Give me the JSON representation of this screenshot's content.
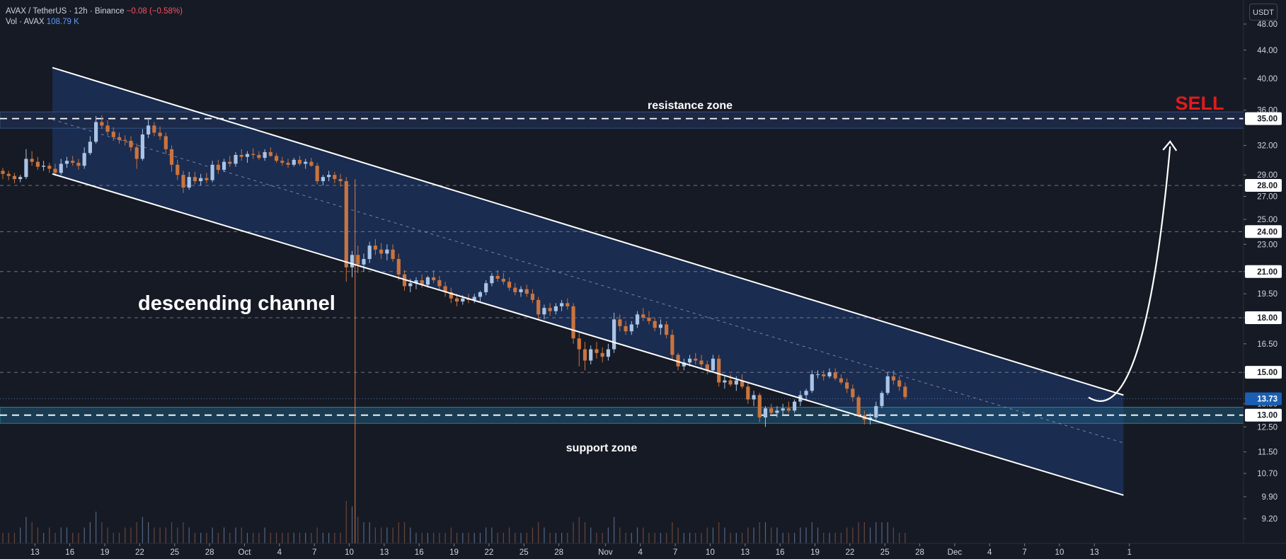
{
  "header": {
    "symbol": "AVAX / TetherUS · 12h · Binance",
    "change": "−0.08 (−0.58%)",
    "volume_label": "Vol · AVAX",
    "volume_value": "108.79 K"
  },
  "toolbar": {
    "unit_label": "USDT"
  },
  "colors": {
    "background": "#161a25",
    "up": "#a9c4e6",
    "down": "#c9743f",
    "channel_fill": "#1c3360",
    "support_fill": "#1f5a7a",
    "sell": "#e01b1b",
    "current_price_tag": "#1a5fb4"
  },
  "annotations": {
    "resistance_label": "resistance zone",
    "support_label": "support zone",
    "channel_label": "descending channel",
    "sell_label": "SELL"
  },
  "chart_data": {
    "type": "candlestick",
    "series_name": "AVAX / TetherUS",
    "timeframe": "12h",
    "y_axis": {
      "scale": "log",
      "ylim": [
        9.0,
        51.5
      ],
      "ticks": [
        48.0,
        44.0,
        40.0,
        36.0,
        32.0,
        29.0,
        27.0,
        25.0,
        23.0,
        21.0,
        19.5,
        18.0,
        16.5,
        15.0,
        13.5,
        12.5,
        11.5,
        10.7,
        9.9,
        9.2
      ]
    },
    "y_tick_labels": [
      "48.00",
      "44.00",
      "40.00",
      "36.00",
      "32.00",
      "29.00",
      "27.00",
      "25.00",
      "23.00",
      "21.00",
      "19.50",
      "18.00",
      "16.50",
      "15.00",
      "13.50",
      "12.50",
      "11.50",
      "10.70",
      "9.90",
      "9.20"
    ],
    "x_ticks": [
      {
        "label": "13",
        "day": 13
      },
      {
        "label": "16",
        "day": 16
      },
      {
        "label": "19",
        "day": 19
      },
      {
        "label": "22",
        "day": 22
      },
      {
        "label": "25",
        "day": 25
      },
      {
        "label": "28",
        "day": 28
      },
      {
        "label": "Oct",
        "day": 31
      },
      {
        "label": "4",
        "day": 34
      },
      {
        "label": "7",
        "day": 37
      },
      {
        "label": "10",
        "day": 40
      },
      {
        "label": "13",
        "day": 43
      },
      {
        "label": "16",
        "day": 46
      },
      {
        "label": "19",
        "day": 49
      },
      {
        "label": "22",
        "day": 52
      },
      {
        "label": "25",
        "day": 55
      },
      {
        "label": "28",
        "day": 58
      },
      {
        "label": "Nov",
        "day": 62
      },
      {
        "label": "4",
        "day": 65
      },
      {
        "label": "7",
        "day": 68
      },
      {
        "label": "10",
        "day": 71
      },
      {
        "label": "13",
        "day": 74
      },
      {
        "label": "16",
        "day": 77
      },
      {
        "label": "19",
        "day": 80
      },
      {
        "label": "22",
        "day": 83
      },
      {
        "label": "25",
        "day": 86
      },
      {
        "label": "28",
        "day": 89
      },
      {
        "label": "Dec",
        "day": 92
      },
      {
        "label": "4",
        "day": 95
      },
      {
        "label": "7",
        "day": 98
      },
      {
        "label": "10",
        "day": 101
      },
      {
        "label": "13",
        "day": 104
      },
      {
        "label": "1",
        "day": 107
      }
    ],
    "first_candle_date": "Sep 10",
    "candles_per_day": 2,
    "candles": [
      [
        29.4,
        29.7,
        28.6,
        29.1
      ],
      [
        29.1,
        29.4,
        28.5,
        28.9
      ],
      [
        28.9,
        29.2,
        28.2,
        28.6
      ],
      [
        28.6,
        29.0,
        28.3,
        28.8
      ],
      [
        28.8,
        31.6,
        28.6,
        30.6
      ],
      [
        30.6,
        31.4,
        29.9,
        30.3
      ],
      [
        30.3,
        30.8,
        29.5,
        29.8
      ],
      [
        29.8,
        30.4,
        29.4,
        29.9
      ],
      [
        29.9,
        30.2,
        29.2,
        29.6
      ],
      [
        29.6,
        30.1,
        28.9,
        29.2
      ],
      [
        29.2,
        30.6,
        29.0,
        30.1
      ],
      [
        30.1,
        30.8,
        29.7,
        30.4
      ],
      [
        30.4,
        30.9,
        29.9,
        30.2
      ],
      [
        30.2,
        30.6,
        29.5,
        29.9
      ],
      [
        29.9,
        31.8,
        29.6,
        31.2
      ],
      [
        31.2,
        33.0,
        31.0,
        32.4
      ],
      [
        32.4,
        35.3,
        32.2,
        34.6
      ],
      [
        34.6,
        35.4,
        33.8,
        34.2
      ],
      [
        34.2,
        34.8,
        33.1,
        33.5
      ],
      [
        33.5,
        34.0,
        32.5,
        32.9
      ],
      [
        32.9,
        33.4,
        32.2,
        32.6
      ],
      [
        32.6,
        33.1,
        32.0,
        32.5
      ],
      [
        32.5,
        33.0,
        31.4,
        31.8
      ],
      [
        31.8,
        32.2,
        29.6,
        30.6
      ],
      [
        30.6,
        33.8,
        30.4,
        33.2
      ],
      [
        33.2,
        35.1,
        32.8,
        34.2
      ],
      [
        34.2,
        34.6,
        33.0,
        33.4
      ],
      [
        33.4,
        34.1,
        32.6,
        33.0
      ],
      [
        33.0,
        33.4,
        31.1,
        31.6
      ],
      [
        31.6,
        32.0,
        29.3,
        30.0
      ],
      [
        30.0,
        30.5,
        28.5,
        29.0
      ],
      [
        29.0,
        29.4,
        27.3,
        27.8
      ],
      [
        27.8,
        29.3,
        27.6,
        28.8
      ],
      [
        28.8,
        29.3,
        28.1,
        28.4
      ],
      [
        28.4,
        29.1,
        28.0,
        28.7
      ],
      [
        28.7,
        29.2,
        28.2,
        28.5
      ],
      [
        28.5,
        30.4,
        28.3,
        30.0
      ],
      [
        30.0,
        30.5,
        29.1,
        29.5
      ],
      [
        29.5,
        30.6,
        29.3,
        30.3
      ],
      [
        30.3,
        30.9,
        29.8,
        30.1
      ],
      [
        30.1,
        31.3,
        29.8,
        31.0
      ],
      [
        31.0,
        31.6,
        30.4,
        30.8
      ],
      [
        30.8,
        31.4,
        30.2,
        31.1
      ],
      [
        31.1,
        31.7,
        30.6,
        31.0
      ],
      [
        31.0,
        31.4,
        30.5,
        30.7
      ],
      [
        30.7,
        31.6,
        30.4,
        31.3
      ],
      [
        31.3,
        31.8,
        30.8,
        30.9
      ],
      [
        30.9,
        31.2,
        30.2,
        30.4
      ],
      [
        30.4,
        30.8,
        29.9,
        30.2
      ],
      [
        30.2,
        30.6,
        29.7,
        30.0
      ],
      [
        30.0,
        30.7,
        29.8,
        30.5
      ],
      [
        30.5,
        30.9,
        29.9,
        30.1
      ],
      [
        30.1,
        30.6,
        29.6,
        30.3
      ],
      [
        30.3,
        30.7,
        29.8,
        29.9
      ],
      [
        29.9,
        30.2,
        28.1,
        28.4
      ],
      [
        28.4,
        29.0,
        28.0,
        28.8
      ],
      [
        28.8,
        29.4,
        28.4,
        29.0
      ],
      [
        29.0,
        29.3,
        28.2,
        28.6
      ],
      [
        28.6,
        29.1,
        27.9,
        28.4
      ],
      [
        28.4,
        28.8,
        20.3,
        21.3
      ],
      [
        21.3,
        22.5,
        20.6,
        22.2
      ],
      [
        22.2,
        22.9,
        20.9,
        21.5
      ],
      [
        21.5,
        22.3,
        21.0,
        21.9
      ],
      [
        21.9,
        23.2,
        21.6,
        22.9
      ],
      [
        22.9,
        23.4,
        22.2,
        22.6
      ],
      [
        22.6,
        23.1,
        21.9,
        22.3
      ],
      [
        22.3,
        23.0,
        21.8,
        22.6
      ],
      [
        22.6,
        23.0,
        21.7,
        21.9
      ],
      [
        21.9,
        22.3,
        20.4,
        20.8
      ],
      [
        20.8,
        21.1,
        19.7,
        20.0
      ],
      [
        20.0,
        20.5,
        19.6,
        20.2
      ],
      [
        20.2,
        20.6,
        19.8,
        20.4
      ],
      [
        20.4,
        20.8,
        19.9,
        20.1
      ],
      [
        20.1,
        20.7,
        19.9,
        20.6
      ],
      [
        20.6,
        21.1,
        20.2,
        20.4
      ],
      [
        20.4,
        20.7,
        19.8,
        20.0
      ],
      [
        20.0,
        20.3,
        19.3,
        19.6
      ],
      [
        19.6,
        19.9,
        18.9,
        19.2
      ],
      [
        19.2,
        19.5,
        18.7,
        19.0
      ],
      [
        19.0,
        19.4,
        18.8,
        19.2
      ],
      [
        19.2,
        19.5,
        18.9,
        19.1
      ],
      [
        19.1,
        19.5,
        18.9,
        19.3
      ],
      [
        19.3,
        19.7,
        19.0,
        19.6
      ],
      [
        19.6,
        20.4,
        19.4,
        20.2
      ],
      [
        20.2,
        20.9,
        20.0,
        20.7
      ],
      [
        20.7,
        21.1,
        20.3,
        20.5
      ],
      [
        20.5,
        20.9,
        20.1,
        20.3
      ],
      [
        20.3,
        20.6,
        19.7,
        19.9
      ],
      [
        19.9,
        20.2,
        19.4,
        19.6
      ],
      [
        19.6,
        20.0,
        19.3,
        19.8
      ],
      [
        19.8,
        20.1,
        19.3,
        19.5
      ],
      [
        19.5,
        19.8,
        18.9,
        19.1
      ],
      [
        19.1,
        19.3,
        17.9,
        18.2
      ],
      [
        18.2,
        18.8,
        17.9,
        18.6
      ],
      [
        18.6,
        18.9,
        18.1,
        18.4
      ],
      [
        18.4,
        18.9,
        18.2,
        18.7
      ],
      [
        18.7,
        19.1,
        18.4,
        18.9
      ],
      [
        18.9,
        19.2,
        18.5,
        18.7
      ],
      [
        18.7,
        18.9,
        16.5,
        16.8
      ],
      [
        16.8,
        17.1,
        15.3,
        16.2
      ],
      [
        16.2,
        16.6,
        15.1,
        15.6
      ],
      [
        15.6,
        16.4,
        15.4,
        16.2
      ],
      [
        16.2,
        16.6,
        15.7,
        16.0
      ],
      [
        16.0,
        16.3,
        15.5,
        15.8
      ],
      [
        15.8,
        16.5,
        15.6,
        16.2
      ],
      [
        16.2,
        18.3,
        16.0,
        17.9
      ],
      [
        17.9,
        18.2,
        17.2,
        17.5
      ],
      [
        17.5,
        17.8,
        17.0,
        17.2
      ],
      [
        17.2,
        17.8,
        17.0,
        17.6
      ],
      [
        17.6,
        18.4,
        17.4,
        18.2
      ],
      [
        18.2,
        18.6,
        17.8,
        18.0
      ],
      [
        18.0,
        18.4,
        17.6,
        17.8
      ],
      [
        17.8,
        18.0,
        17.2,
        17.4
      ],
      [
        17.4,
        17.9,
        17.0,
        17.6
      ],
      [
        17.6,
        17.8,
        16.8,
        17.0
      ],
      [
        17.0,
        17.3,
        15.6,
        15.9
      ],
      [
        15.9,
        16.0,
        15.1,
        15.3
      ],
      [
        15.3,
        15.7,
        15.1,
        15.5
      ],
      [
        15.5,
        15.9,
        15.3,
        15.7
      ],
      [
        15.7,
        16.0,
        15.4,
        15.6
      ],
      [
        15.6,
        15.9,
        15.2,
        15.4
      ],
      [
        15.4,
        15.6,
        14.9,
        15.1
      ],
      [
        15.1,
        15.9,
        15.0,
        15.7
      ],
      [
        15.7,
        15.9,
        14.3,
        14.5
      ],
      [
        14.5,
        14.8,
        14.2,
        14.6
      ],
      [
        14.6,
        14.9,
        14.3,
        14.4
      ],
      [
        14.4,
        14.8,
        14.1,
        14.6
      ],
      [
        14.6,
        14.9,
        14.2,
        14.3
      ],
      [
        14.3,
        14.5,
        13.5,
        13.7
      ],
      [
        13.7,
        14.1,
        13.4,
        13.9
      ],
      [
        13.9,
        14.0,
        12.7,
        12.9
      ],
      [
        12.9,
        13.4,
        12.5,
        13.3
      ],
      [
        13.3,
        13.5,
        13.0,
        13.1
      ],
      [
        13.1,
        13.4,
        12.9,
        13.2
      ],
      [
        13.2,
        13.5,
        13.0,
        13.3
      ],
      [
        13.3,
        13.6,
        13.1,
        13.2
      ],
      [
        13.2,
        13.7,
        13.1,
        13.6
      ],
      [
        13.6,
        14.1,
        13.4,
        13.9
      ],
      [
        13.9,
        14.2,
        13.7,
        14.1
      ],
      [
        14.1,
        15.1,
        14.0,
        14.9
      ],
      [
        14.9,
        15.1,
        14.7,
        14.9
      ],
      [
        14.9,
        15.1,
        14.6,
        14.8
      ],
      [
        14.8,
        15.2,
        14.7,
        15.0
      ],
      [
        15.0,
        15.2,
        14.6,
        14.7
      ],
      [
        14.7,
        14.9,
        14.4,
        14.5
      ],
      [
        14.5,
        14.7,
        14.0,
        14.2
      ],
      [
        14.2,
        14.4,
        13.6,
        13.8
      ],
      [
        13.8,
        13.9,
        12.9,
        13.0
      ],
      [
        13.0,
        13.2,
        12.6,
        12.8
      ],
      [
        12.8,
        13.1,
        12.6,
        12.9
      ],
      [
        12.9,
        13.6,
        12.8,
        13.4
      ],
      [
        13.4,
        14.1,
        13.3,
        14.0
      ],
      [
        14.0,
        15.0,
        13.9,
        14.8
      ],
      [
        14.8,
        15.1,
        14.4,
        14.6
      ],
      [
        14.6,
        14.8,
        14.1,
        14.3
      ],
      [
        14.3,
        14.5,
        13.7,
        13.81
      ]
    ],
    "volume": [
      2,
      2,
      2,
      3,
      5,
      4,
      3,
      2,
      3,
      2,
      3,
      3,
      2,
      2,
      3,
      4,
      6,
      4,
      3,
      2,
      2,
      3,
      3,
      4,
      5,
      4,
      3,
      3,
      3,
      4,
      3,
      4,
      3,
      2,
      2,
      2,
      3,
      2,
      3,
      2,
      3,
      3,
      2,
      2,
      2,
      3,
      2,
      2,
      2,
      2,
      2,
      2,
      2,
      2,
      3,
      2,
      2,
      2,
      2,
      8,
      7,
      5,
      4,
      4,
      3,
      3,
      3,
      3,
      4,
      4,
      3,
      2,
      2,
      2,
      2,
      2,
      2,
      3,
      2,
      2,
      2,
      2,
      2,
      3,
      3,
      2,
      2,
      3,
      2,
      2,
      2,
      3,
      4,
      3,
      2,
      2,
      2,
      2,
      4,
      5,
      4,
      3,
      2,
      2,
      3,
      5,
      3,
      2,
      2,
      3,
      3,
      2,
      2,
      2,
      2,
      4,
      3,
      2,
      2,
      2,
      2,
      3,
      3,
      4,
      3,
      2,
      2,
      2,
      3,
      3,
      4,
      4,
      3,
      3,
      2,
      2,
      2,
      3,
      3,
      4,
      3,
      2,
      2,
      2,
      2,
      3,
      3,
      4,
      4,
      3,
      4,
      4,
      4,
      3,
      2,
      2
    ],
    "current_price": 13.73,
    "current_price_label": "13.73",
    "levels": [
      {
        "price": 35.0,
        "label": "35.00",
        "style": "dashed-strong"
      },
      {
        "price": 28.0,
        "label": "28.00",
        "style": "dashed"
      },
      {
        "price": 24.0,
        "label": "24.00",
        "style": "dashed"
      },
      {
        "price": 21.0,
        "label": "21.00",
        "style": "dashed"
      },
      {
        "price": 18.0,
        "label": "18.00",
        "style": "dashed"
      },
      {
        "price": 15.0,
        "label": "15.00",
        "style": "dashed"
      },
      {
        "price": 13.0,
        "label": "13.00",
        "style": "dashed-strong"
      }
    ],
    "resistance_zone": [
      33.9,
      35.8
    ],
    "support_zone": [
      12.65,
      13.35
    ],
    "channel": {
      "upper": [
        [
          14.5,
          41.5
        ],
        [
          106.5,
          13.9
        ]
      ],
      "lower": [
        [
          14.5,
          29.1
        ],
        [
          106.5,
          9.95
        ]
      ],
      "mid": [
        [
          14.5,
          34.9
        ],
        [
          106.5,
          11.85
        ]
      ]
    },
    "event_marker_day": 40.5,
    "projection_arrow": {
      "from": [
        103.5,
        13.6
      ],
      "to": [
        110.5,
        32.5
      ]
    }
  }
}
